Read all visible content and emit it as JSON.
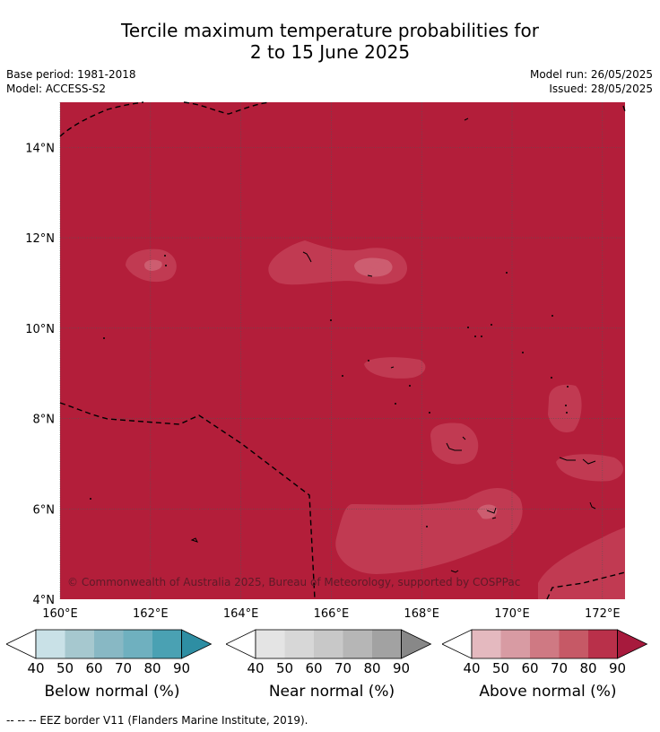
{
  "title_line1": "Tercile maximum temperature probabilities for",
  "title_line2": "2 to 15 June 2025",
  "meta": {
    "base_period": "Base period: 1981-2018",
    "model": "Model: ACCESS-S2",
    "model_run": "Model run: 26/05/2025",
    "issued": "Issued: 28/05/2025"
  },
  "map": {
    "lon_range": [
      160,
      172.5
    ],
    "lat_range": [
      4,
      15
    ],
    "lon_ticks": [
      "160°E",
      "162°E",
      "164°E",
      "166°E",
      "168°E",
      "170°E",
      "172°E"
    ],
    "lat_ticks": [
      "4°N",
      "6°N",
      "8°N",
      "10°N",
      "12°N",
      "14°N"
    ],
    "background_color": "#b31e3a",
    "copyright": "© Commonwealth of Australia 2025, Bureau of Meteorology, supported by COSPPac"
  },
  "colorbars": [
    {
      "name": "Below normal (%)",
      "ticks": [
        "40",
        "50",
        "60",
        "70",
        "80",
        "90"
      ],
      "colors": [
        "#ffffff",
        "#c9e1e7",
        "#a6c8cf",
        "#88b8c4",
        "#6fb0bf",
        "#4aa1b3",
        "#2e8ea3"
      ]
    },
    {
      "name": "Near normal (%)",
      "ticks": [
        "40",
        "50",
        "60",
        "70",
        "80",
        "90"
      ],
      "colors": [
        "#ffffff",
        "#e4e4e4",
        "#d7d7d7",
        "#c8c8c8",
        "#b6b6b6",
        "#a2a2a2",
        "#888888"
      ]
    },
    {
      "name": "Above normal (%)",
      "ticks": [
        "40",
        "50",
        "60",
        "70",
        "80",
        "90"
      ],
      "colors": [
        "#ffffff",
        "#e4b9bf",
        "#d89ba3",
        "#cf7983",
        "#c65966",
        "#b9304a",
        "#a71a3d"
      ]
    }
  ],
  "footnote": "-- -- -- EEZ border V11 (Flanders Marine Institute, 2019)."
}
